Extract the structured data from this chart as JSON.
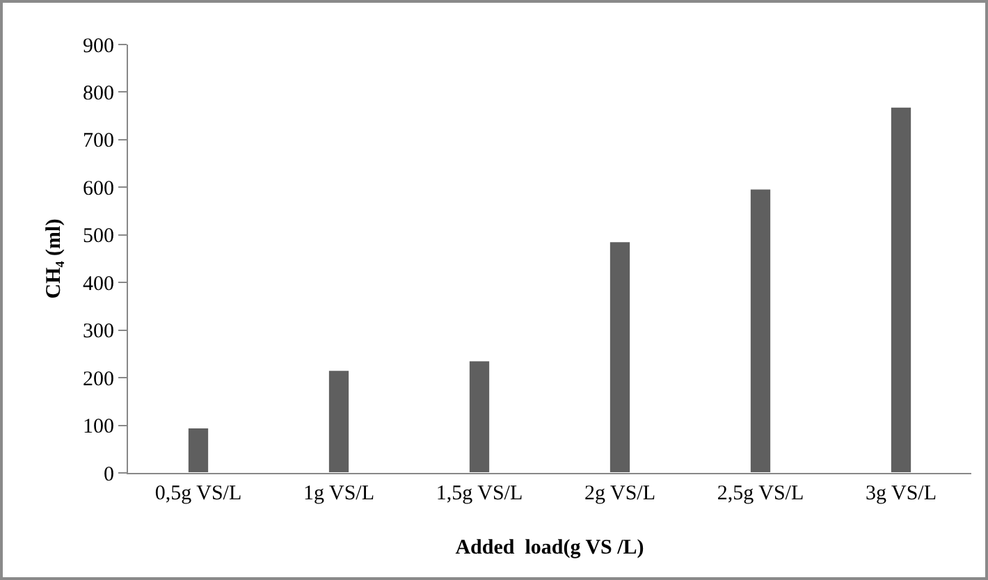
{
  "chart_data": {
    "type": "bar",
    "xlabel": "Added  load(g VS /L)",
    "ylabel": "CH₄ (ml)",
    "categories": [
      "0,5g VS/L",
      "1g VS/L",
      "1,5g VS/L",
      "2g VS/L",
      "2,5g VS/L",
      "3g VS/L"
    ],
    "values": [
      95,
      216,
      236,
      486,
      597,
      769
    ],
    "color": "#5f5f5f",
    "ylim": [
      0,
      900
    ],
    "yticks": [
      0,
      100,
      200,
      300,
      400,
      500,
      600,
      700,
      800,
      900
    ],
    "grid": false
  }
}
